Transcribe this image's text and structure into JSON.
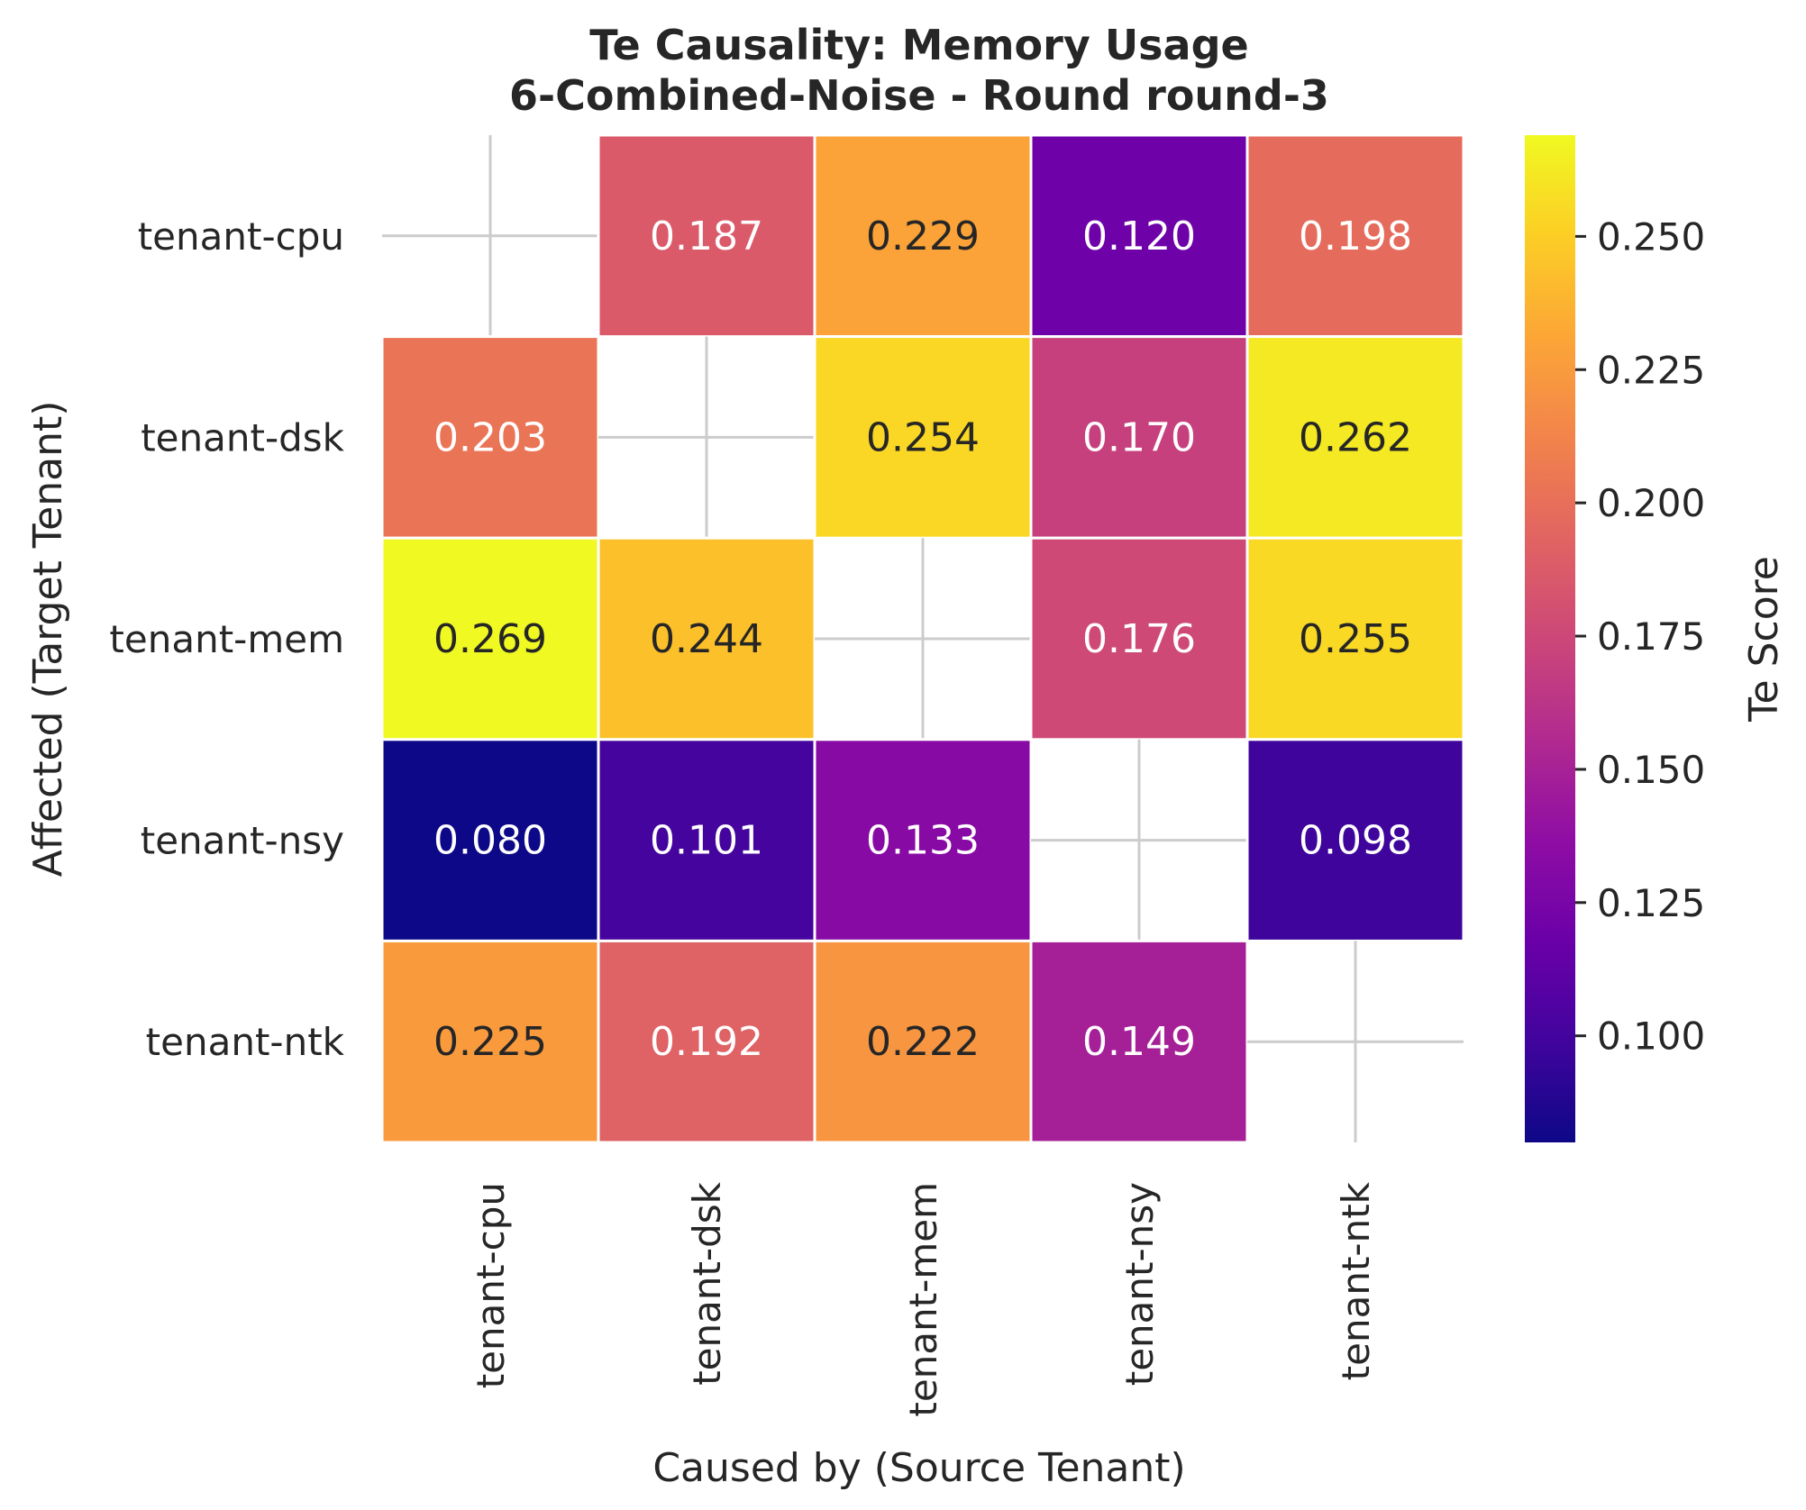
{
  "chart_data": {
    "type": "heatmap",
    "title": "Te Causality: Memory Usage",
    "subtitle": "6-Combined-Noise - Round round-3",
    "xlabel": "Caused by (Source Tenant)",
    "ylabel": "Affected (Target Tenant)",
    "x_categories": [
      "tenant-cpu",
      "tenant-dsk",
      "tenant-mem",
      "tenant-nsy",
      "tenant-ntk"
    ],
    "y_categories": [
      "tenant-cpu",
      "tenant-dsk",
      "tenant-mem",
      "tenant-nsy",
      "tenant-ntk"
    ],
    "values": [
      [
        null,
        0.187,
        0.229,
        0.12,
        0.198
      ],
      [
        0.203,
        null,
        0.254,
        0.17,
        0.262
      ],
      [
        0.269,
        0.244,
        null,
        0.176,
        0.255
      ],
      [
        0.08,
        0.101,
        0.133,
        null,
        0.098
      ],
      [
        0.225,
        0.192,
        0.222,
        0.149,
        null
      ]
    ],
    "value_labels": [
      [
        "",
        "0.187",
        "0.229",
        "0.120",
        "0.198"
      ],
      [
        "0.203",
        "",
        "0.254",
        "0.170",
        "0.262"
      ],
      [
        "0.269",
        "0.244",
        "",
        "0.176",
        "0.255"
      ],
      [
        "0.080",
        "0.101",
        "0.133",
        "",
        "0.098"
      ],
      [
        "0.225",
        "0.192",
        "0.222",
        "0.149",
        ""
      ]
    ],
    "colormap": "plasma",
    "vmin": 0.08,
    "vmax": 0.269,
    "colorbar": {
      "label": "Te Score",
      "ticks": [
        0.1,
        0.125,
        0.15,
        0.175,
        0.2,
        0.225,
        0.25
      ],
      "tick_labels": [
        "0.100",
        "0.125",
        "0.150",
        "0.175",
        "0.200",
        "0.225",
        "0.250"
      ]
    },
    "diagonal_masked": true,
    "colors": {
      "text_dark": "#262626",
      "text_light": "#ffffff",
      "mask_grid": "#cccccc",
      "cell_border": "#ffffff"
    }
  }
}
